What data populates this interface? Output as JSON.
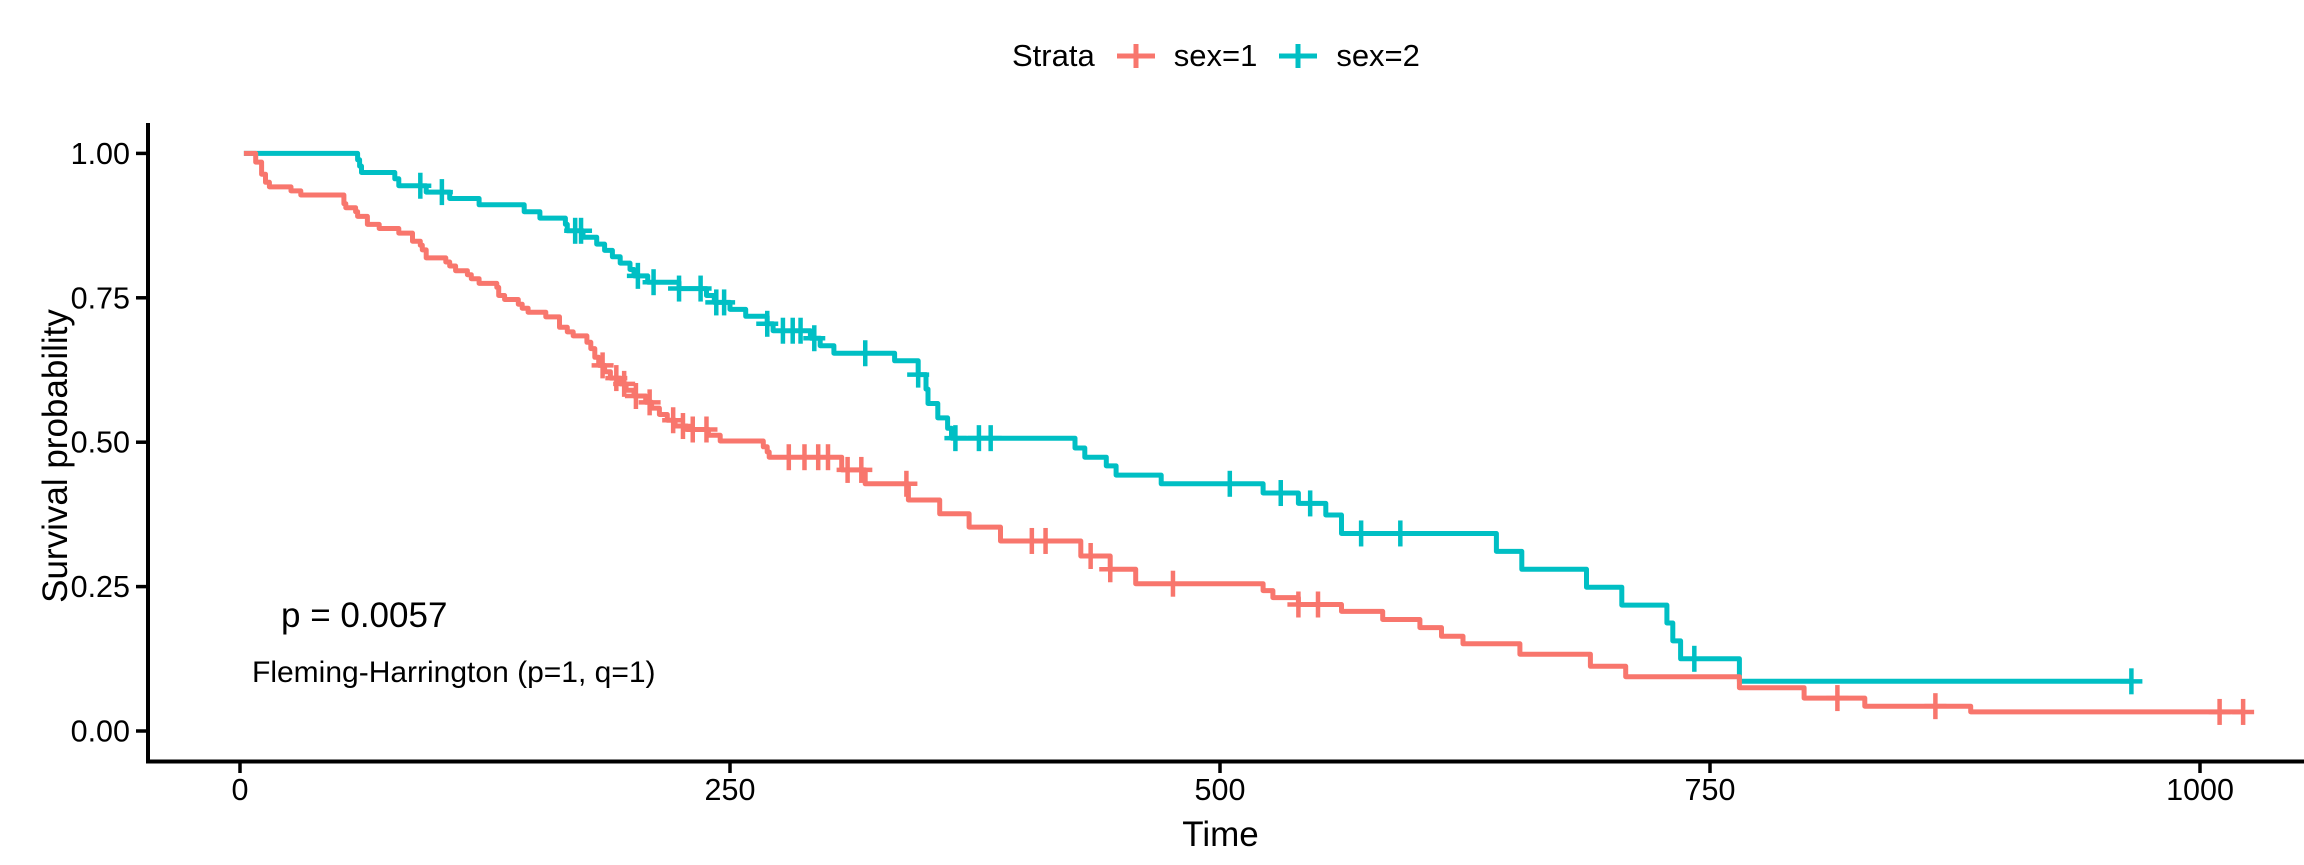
{
  "figure": {
    "background": "#ffffff",
    "text_color": "#000000"
  },
  "chart_data": {
    "type": "line",
    "subtype": "kaplan-meier-step-curve",
    "title": "",
    "xlabel": "Time",
    "ylabel": "Survival probability",
    "grid": false,
    "xlim": [
      -51,
      1055
    ],
    "ylim": [
      -0.05,
      1.05
    ],
    "legend": {
      "title": "Strata",
      "position": "top"
    },
    "x_axis": {
      "tick_values": [
        0,
        250,
        500,
        750,
        1000
      ],
      "tick_labels": [
        "0",
        "250",
        "500",
        "750",
        "1000"
      ]
    },
    "y_axis": {
      "tick_values": [
        0,
        0.25,
        0.5,
        0.75,
        1
      ],
      "tick_labels": [
        "0.00",
        "0.25",
        "0.50",
        "0.75",
        "1.00"
      ]
    },
    "annotations": {
      "pvalue": "p = 0.0057",
      "method": "Fleming-Harrington (p=1, q=1)"
    },
    "series": [
      {
        "name": "sex=1",
        "color": "#F8766D",
        "end_time": 1022,
        "steps": [
          [
            2,
            1.0
          ],
          [
            8,
            0.985
          ],
          [
            11,
            0.964
          ],
          [
            13,
            0.95
          ],
          [
            15,
            0.942
          ],
          [
            26,
            0.935
          ],
          [
            31,
            0.928
          ],
          [
            53,
            0.913
          ],
          [
            54,
            0.906
          ],
          [
            59,
            0.899
          ],
          [
            60,
            0.891
          ],
          [
            65,
            0.877
          ],
          [
            71,
            0.87
          ],
          [
            81,
            0.862
          ],
          [
            88,
            0.848
          ],
          [
            92,
            0.841
          ],
          [
            93,
            0.833
          ],
          [
            95,
            0.819
          ],
          [
            105,
            0.812
          ],
          [
            107,
            0.805
          ],
          [
            110,
            0.797
          ],
          [
            116,
            0.79
          ],
          [
            118,
            0.783
          ],
          [
            122,
            0.775
          ],
          [
            131,
            0.768
          ],
          [
            132,
            0.754
          ],
          [
            135,
            0.747
          ],
          [
            142,
            0.739
          ],
          [
            144,
            0.732
          ],
          [
            147,
            0.725
          ],
          [
            156,
            0.717
          ],
          [
            163,
            0.699
          ],
          [
            167,
            0.691
          ],
          [
            170,
            0.684
          ],
          [
            177,
            0.673
          ],
          [
            179,
            0.662
          ],
          [
            181,
            0.647
          ],
          [
            183,
            0.633
          ],
          [
            186,
            0.622
          ],
          [
            189,
            0.611
          ],
          [
            194,
            0.601
          ],
          [
            197,
            0.59
          ],
          [
            201,
            0.58
          ],
          [
            207,
            0.569
          ],
          [
            210,
            0.559
          ],
          [
            214,
            0.548
          ],
          [
            218,
            0.538
          ],
          [
            222,
            0.528
          ],
          [
            228,
            0.522
          ],
          [
            239,
            0.512
          ],
          [
            245,
            0.502
          ],
          [
            267,
            0.492
          ],
          [
            269,
            0.483
          ],
          [
            270,
            0.474
          ],
          [
            307,
            0.452
          ],
          [
            319,
            0.428
          ],
          [
            341,
            0.4
          ],
          [
            357,
            0.376
          ],
          [
            372,
            0.353
          ],
          [
            388,
            0.329
          ],
          [
            429,
            0.303
          ],
          [
            444,
            0.28
          ],
          [
            457,
            0.255
          ],
          [
            522,
            0.243
          ],
          [
            527,
            0.231
          ],
          [
            540,
            0.219
          ],
          [
            562,
            0.207
          ],
          [
            583,
            0.193
          ],
          [
            602,
            0.179
          ],
          [
            613,
            0.164
          ],
          [
            624,
            0.151
          ],
          [
            653,
            0.133
          ],
          [
            689,
            0.112
          ],
          [
            707,
            0.094
          ],
          [
            765,
            0.075
          ],
          [
            798,
            0.057
          ],
          [
            829,
            0.043
          ],
          [
            883,
            0.033
          ]
        ],
        "censor_times": [
          185,
          192,
          196,
          202,
          209,
          221,
          226,
          231,
          238,
          280,
          288,
          295,
          300,
          310,
          317,
          340,
          404,
          411,
          434,
          444,
          476,
          540,
          550,
          815,
          865,
          1010,
          1022
        ]
      },
      {
        "name": "sex=2",
        "color": "#00BFC4",
        "end_time": 965,
        "steps": [
          [
            2,
            1.0
          ],
          [
            60,
            0.989
          ],
          [
            61,
            0.978
          ],
          [
            62,
            0.967
          ],
          [
            79,
            0.956
          ],
          [
            81,
            0.944
          ],
          [
            95,
            0.933
          ],
          [
            107,
            0.922
          ],
          [
            122,
            0.911
          ],
          [
            145,
            0.899
          ],
          [
            153,
            0.888
          ],
          [
            166,
            0.877
          ],
          [
            167,
            0.866
          ],
          [
            175,
            0.855
          ],
          [
            182,
            0.843
          ],
          [
            186,
            0.832
          ],
          [
            190,
            0.821
          ],
          [
            194,
            0.81
          ],
          [
            199,
            0.799
          ],
          [
            201,
            0.788
          ],
          [
            208,
            0.777
          ],
          [
            224,
            0.766
          ],
          [
            238,
            0.754
          ],
          [
            242,
            0.742
          ],
          [
            250,
            0.73
          ],
          [
            258,
            0.718
          ],
          [
            269,
            0.705
          ],
          [
            272,
            0.693
          ],
          [
            291,
            0.68
          ],
          [
            296,
            0.667
          ],
          [
            303,
            0.654
          ],
          [
            334,
            0.641
          ],
          [
            346,
            0.617
          ],
          [
            350,
            0.592
          ],
          [
            351,
            0.567
          ],
          [
            356,
            0.542
          ],
          [
            361,
            0.524
          ],
          [
            363,
            0.507
          ],
          [
            426,
            0.49
          ],
          [
            431,
            0.474
          ],
          [
            442,
            0.459
          ],
          [
            447,
            0.443
          ],
          [
            470,
            0.428
          ],
          [
            522,
            0.412
          ],
          [
            540,
            0.394
          ],
          [
            554,
            0.374
          ],
          [
            562,
            0.342
          ],
          [
            641,
            0.311
          ],
          [
            654,
            0.28
          ],
          [
            687,
            0.249
          ],
          [
            705,
            0.218
          ],
          [
            728,
            0.187
          ],
          [
            731,
            0.156
          ],
          [
            735,
            0.125
          ],
          [
            765,
            0.086
          ]
        ],
        "censor_times": [
          92,
          103,
          171,
          174,
          203,
          211,
          224,
          235,
          243,
          247,
          269,
          277,
          282,
          286,
          293,
          319,
          346,
          365,
          377,
          383,
          505,
          531,
          546,
          572,
          592,
          742,
          965
        ]
      }
    ]
  }
}
